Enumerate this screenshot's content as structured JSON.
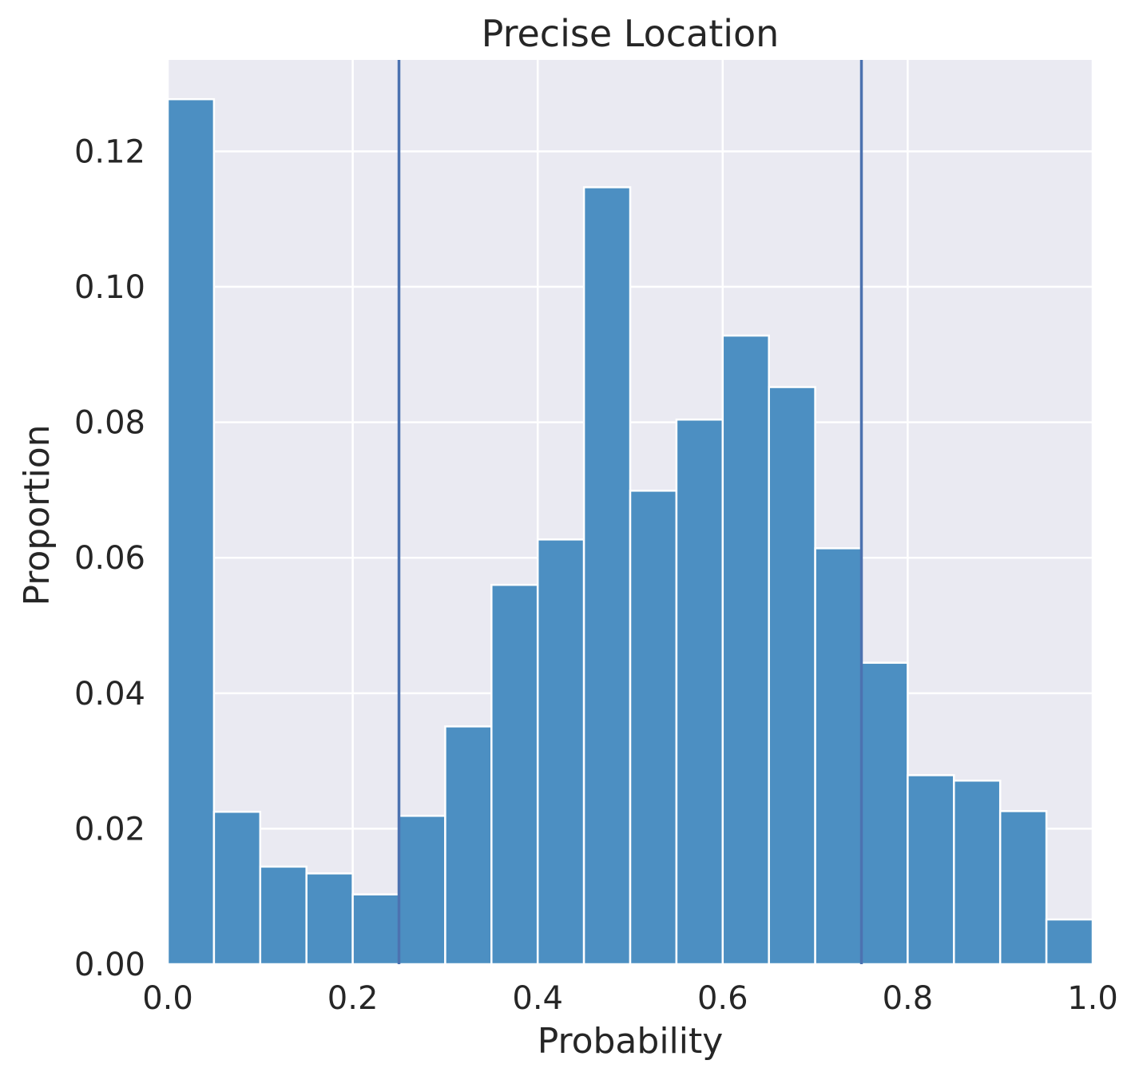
{
  "chart_data": {
    "type": "bar",
    "title": "Precise Location",
    "xlabel": "Probability",
    "ylabel": "Proportion",
    "xlim": [
      0.0,
      1.0
    ],
    "ylim": [
      0.0,
      0.1335
    ],
    "bin_edges": [
      0.0,
      0.05,
      0.1,
      0.15,
      0.2,
      0.25,
      0.3,
      0.35,
      0.4,
      0.45,
      0.5,
      0.55,
      0.6,
      0.65,
      0.7,
      0.75,
      0.8,
      0.85,
      0.9,
      0.95,
      1.0
    ],
    "values": [
      0.1277,
      0.0225,
      0.0144,
      0.0134,
      0.0103,
      0.0219,
      0.0351,
      0.056,
      0.0627,
      0.1147,
      0.0699,
      0.0804,
      0.0928,
      0.0852,
      0.0614,
      0.0445,
      0.0279,
      0.0271,
      0.0226,
      0.0066
    ],
    "x_ticks": [
      0.0,
      0.2,
      0.4,
      0.6,
      0.8,
      1.0
    ],
    "x_tick_labels": [
      "0.0",
      "0.2",
      "0.4",
      "0.6",
      "0.8",
      "1.0"
    ],
    "y_ticks": [
      0.0,
      0.02,
      0.04,
      0.06,
      0.08,
      0.1,
      0.12
    ],
    "y_tick_labels": [
      "0.00",
      "0.02",
      "0.04",
      "0.06",
      "0.08",
      "0.10",
      "0.12"
    ],
    "vlines": [
      0.25,
      0.75
    ],
    "grid": true,
    "colors": {
      "bar": "#4c8fc2",
      "vline": "#4c72b0",
      "background": "#eaeaf2",
      "grid": "#ffffff",
      "text": "#262626"
    }
  }
}
